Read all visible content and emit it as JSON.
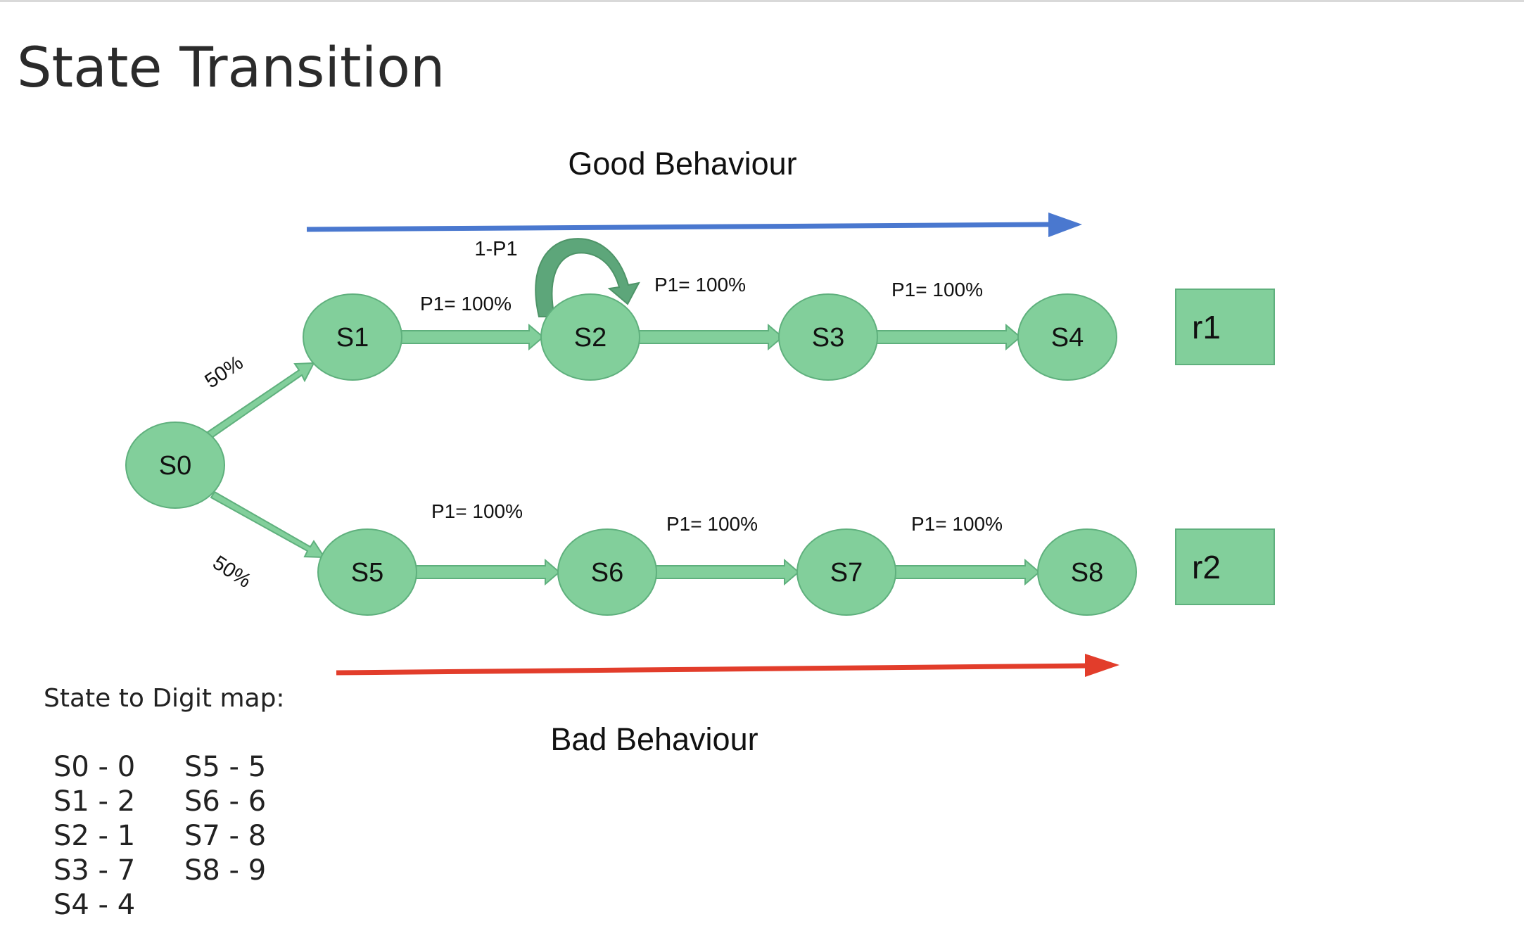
{
  "title": "State Transition",
  "diagram": {
    "good_label": "Good Behaviour",
    "bad_label": "Bad Behaviour",
    "colors": {
      "node_fill": "#82cf9b",
      "node_stroke": "#5fb07d",
      "good_arrow": "#4a78cf",
      "bad_arrow": "#e23d2b",
      "self_loop": "#5da67a"
    },
    "states": [
      "S0",
      "S1",
      "S2",
      "S3",
      "S4",
      "S5",
      "S6",
      "S7",
      "S8"
    ],
    "rewards": [
      "r1",
      "r2"
    ],
    "edge_labels": {
      "s0_s1": "50%",
      "s0_s5": "50%",
      "s1_s2": "P1= 100%",
      "s2_s3": "P1= 100%",
      "s3_s4": "P1= 100%",
      "s2_loop": "1-P1",
      "s5_s6": "P1= 100%",
      "s6_s7": "P1= 100%",
      "s7_s8": "P1= 100%"
    }
  },
  "state_map": {
    "title": "State to Digit map:",
    "left": [
      "S0 - 0",
      "S1 - 2",
      "S2 - 1",
      "S3 - 7",
      "S4 - 4"
    ],
    "right": [
      "S5 - 5",
      "S6 - 6",
      "S7 - 8",
      "S8 - 9"
    ]
  }
}
